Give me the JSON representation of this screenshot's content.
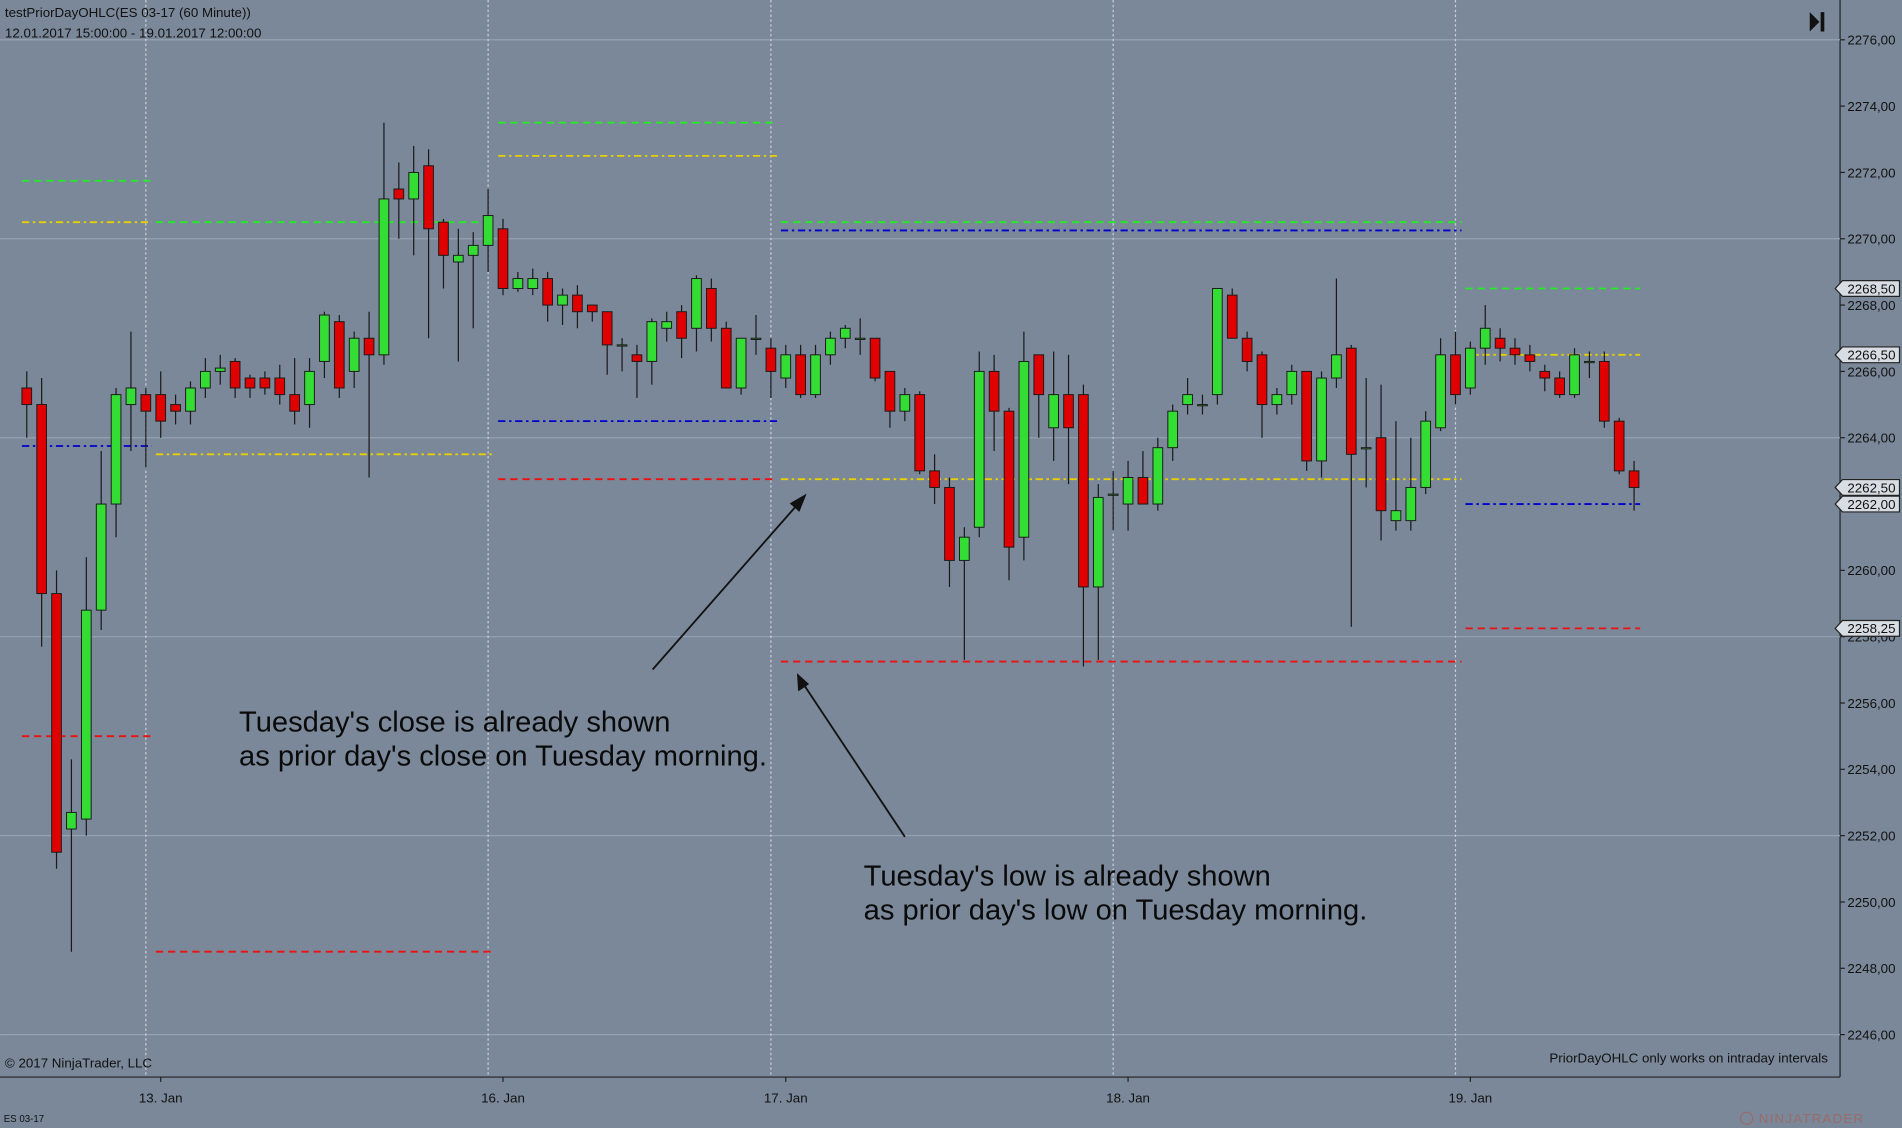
{
  "chart_data": {
    "type": "candlestick",
    "title": "testPriorDayOHLC(ES 03-17 (60 Minute))",
    "subtitle": "12.01.2017 15:00:00 - 19.01.2017 12:00:00",
    "copyright": "© 2017 NinjaTrader, LLC",
    "note": "PriorDayOHLC only works on intraday intervals",
    "instrument": "ES 03-17",
    "logo": "NINJATRADER",
    "up_color": "#33dd33",
    "down_color": "#e00000",
    "categories": [
      null,
      null,
      null,
      null,
      null,
      null,
      null,
      null,
      null,
      "13. Jan",
      null,
      null,
      null,
      null,
      null,
      null,
      null,
      null,
      null,
      null,
      null,
      null,
      null,
      null,
      null,
      null,
      null,
      null,
      null,
      null,
      null,
      null,
      "16. Jan",
      null,
      null,
      null,
      null,
      null,
      null,
      null,
      null,
      null,
      null,
      null,
      null,
      null,
      null,
      null,
      null,
      null,
      null,
      "17. Jan",
      null,
      null,
      null,
      null,
      null,
      null,
      null,
      null,
      null,
      null,
      null,
      null,
      null,
      null,
      null,
      null,
      null,
      null,
      null,
      null,
      null,
      null,
      "18. Jan",
      null,
      null,
      null,
      null,
      null,
      null,
      null,
      null,
      null,
      null,
      null,
      null,
      null,
      null,
      null,
      null,
      null,
      null,
      null,
      null,
      null,
      null,
      "19. Jan",
      null,
      null,
      null,
      null,
      null,
      null,
      null,
      null,
      null,
      null,
      null
    ],
    "open": [
      2265.5,
      2265.0,
      2259.3,
      2252.2,
      2252.5,
      2258.8,
      2262.0,
      2265.0,
      2265.3,
      2265.3,
      2265.0,
      2264.8,
      2265.5,
      2266.0,
      2266.3,
      2265.8,
      2265.8,
      2265.8,
      2265.3,
      2265.0,
      2266.3,
      2267.5,
      2266.0,
      2267.0,
      2266.5,
      2271.5,
      2271.2,
      2272.2,
      2270.5,
      2269.3,
      2269.5,
      2269.8,
      2270.3,
      2268.5,
      2268.5,
      2268.8,
      2268.0,
      2268.3,
      2268.0,
      2267.8,
      2266.8,
      2266.5,
      2266.3,
      2267.3,
      2267.8,
      2267.3,
      2268.5,
      2267.3,
      2265.5,
      2267.0,
      2266.7,
      2265.8,
      2266.5,
      2265.3,
      2266.5,
      2267.0,
      2267.0,
      2267.0,
      2266.0,
      2264.8,
      2265.3,
      2263.0,
      2262.5,
      2260.3,
      2261.3,
      2266.0,
      2264.8,
      2261.0,
      2266.5,
      2264.3,
      2265.3,
      2265.3,
      2259.5,
      2262.3,
      2262.0,
      2262.8,
      2262.0,
      2263.7,
      2265.0,
      2265.0,
      2265.3,
      2268.3,
      2267.0,
      2266.5,
      2265.0,
      2265.3,
      2266.0,
      2263.3,
      2265.8,
      2266.7,
      2263.7,
      2264.0,
      2261.5,
      2261.5,
      2262.5,
      2264.3,
      2266.5,
      2265.5,
      2266.7,
      2267.0,
      2266.7,
      2266.5,
      2266.0,
      2265.8,
      2265.3,
      2266.3,
      2266.3,
      2264.5,
      2263.0
    ],
    "high": [
      2266.0,
      2265.8,
      2260.0,
      2254.3,
      2260.4,
      2263.6,
      2265.5,
      2267.2,
      2265.5,
      2266.0,
      2265.3,
      2265.7,
      2266.4,
      2266.5,
      2266.4,
      2265.9,
      2266.0,
      2266.2,
      2266.4,
      2266.4,
      2267.8,
      2267.7,
      2267.2,
      2267.8,
      2273.5,
      2272.3,
      2272.8,
      2272.7,
      2270.6,
      2270.3,
      2270.2,
      2271.5,
      2270.6,
      2269.0,
      2269.1,
      2269.0,
      2268.5,
      2268.6,
      2268.0,
      2267.8,
      2267.0,
      2266.8,
      2267.6,
      2267.8,
      2268.0,
      2268.9,
      2268.8,
      2267.5,
      2267.0,
      2267.7,
      2267.0,
      2266.8,
      2266.8,
      2266.8,
      2267.2,
      2267.4,
      2267.6,
      2267.0,
      2266.0,
      2265.5,
      2265.4,
      2263.5,
      2262.8,
      2261.3,
      2266.6,
      2266.5,
      2264.9,
      2267.2,
      2266.5,
      2266.6,
      2266.5,
      2265.6,
      2262.6,
      2263.0,
      2263.3,
      2263.6,
      2264.0,
      2265.0,
      2265.8,
      2265.3,
      2268.5,
      2268.5,
      2267.2,
      2266.6,
      2265.5,
      2266.2,
      2266.0,
      2266.0,
      2268.8,
      2266.8,
      2265.8,
      2265.6,
      2264.5,
      2264.0,
      2264.8,
      2267.0,
      2267.2,
      2266.9,
      2268.0,
      2267.3,
      2267.0,
      2266.8,
      2266.2,
      2266.0,
      2266.7,
      2266.6,
      2266.6,
      2264.6,
      2263.3
    ],
    "low": [
      2264.0,
      2257.7,
      2251.0,
      2248.5,
      2252.0,
      2258.2,
      2261.0,
      2263.6,
      2263.1,
      2264.0,
      2264.4,
      2264.4,
      2265.2,
      2265.6,
      2265.2,
      2265.2,
      2265.3,
      2265.0,
      2264.4,
      2264.3,
      2265.8,
      2265.2,
      2265.5,
      2262.8,
      2266.2,
      2270.0,
      2269.5,
      2267.0,
      2268.5,
      2266.3,
      2267.3,
      2269.0,
      2268.3,
      2268.4,
      2268.3,
      2267.5,
      2267.4,
      2267.3,
      2267.5,
      2265.9,
      2266.0,
      2265.2,
      2265.6,
      2266.9,
      2266.4,
      2266.6,
      2266.9,
      2265.5,
      2265.3,
      2266.5,
      2265.2,
      2265.5,
      2265.2,
      2265.2,
      2266.2,
      2266.7,
      2266.5,
      2265.7,
      2264.3,
      2264.5,
      2262.9,
      2262.0,
      2259.5,
      2257.3,
      2261.0,
      2263.6,
      2259.7,
      2260.3,
      2264.0,
      2263.3,
      2262.6,
      2257.1,
      2257.3,
      2261.2,
      2261.2,
      2262.0,
      2261.8,
      2263.3,
      2264.7,
      2264.7,
      2265.0,
      2267.0,
      2266.0,
      2264.0,
      2264.7,
      2265.0,
      2263.0,
      2262.8,
      2265.5,
      2258.3,
      2262.5,
      2260.9,
      2261.2,
      2261.2,
      2262.3,
      2264.2,
      2265.0,
      2265.3,
      2266.2,
      2266.3,
      2266.2,
      2266.0,
      2265.4,
      2265.2,
      2265.2,
      2265.8,
      2264.3,
      2262.9,
      2261.8
    ],
    "close": [
      2265.0,
      2259.3,
      2251.5,
      2252.7,
      2258.8,
      2262.0,
      2265.3,
      2265.5,
      2264.8,
      2264.5,
      2264.8,
      2265.5,
      2266.0,
      2266.1,
      2265.5,
      2265.5,
      2265.5,
      2265.3,
      2264.8,
      2266.0,
      2267.7,
      2265.5,
      2267.0,
      2266.5,
      2271.2,
      2271.2,
      2272.0,
      2270.3,
      2269.5,
      2269.5,
      2269.8,
      2270.7,
      2268.5,
      2268.8,
      2268.8,
      2268.0,
      2268.3,
      2267.8,
      2267.8,
      2266.8,
      2266.8,
      2266.3,
      2267.5,
      2267.5,
      2267.0,
      2268.8,
      2267.3,
      2265.5,
      2267.0,
      2267.0,
      2266.0,
      2266.5,
      2265.3,
      2266.5,
      2267.0,
      2267.3,
      2267.0,
      2265.8,
      2264.8,
      2265.3,
      2263.0,
      2262.5,
      2260.3,
      2261.0,
      2266.0,
      2264.8,
      2260.7,
      2266.3,
      2265.3,
      2265.3,
      2264.3,
      2259.5,
      2262.2,
      2262.3,
      2262.8,
      2262.0,
      2263.7,
      2264.8,
      2265.3,
      2265.0,
      2268.5,
      2267.0,
      2266.3,
      2265.0,
      2265.3,
      2266.0,
      2263.3,
      2265.8,
      2266.5,
      2263.5,
      2263.7,
      2261.8,
      2261.8,
      2262.5,
      2264.5,
      2266.5,
      2265.3,
      2266.7,
      2267.3,
      2266.7,
      2266.5,
      2266.3,
      2265.8,
      2265.3,
      2266.5,
      2266.3,
      2264.5,
      2263.0,
      2262.5
    ],
    "last_label": "2262,50",
    "levels": [
      {
        "color": "#22ee22",
        "dash": "dashed",
        "from": 0,
        "to": 8,
        "value": 2271.75
      },
      {
        "color": "#e8d000",
        "dash": "dashdot",
        "from": 0,
        "to": 8,
        "value": 2270.5
      },
      {
        "color": "#0000cc",
        "dash": "dashdot",
        "from": 0,
        "to": 8,
        "value": 2263.75
      },
      {
        "color": "#ee1111",
        "dash": "dashed",
        "from": 0,
        "to": 8,
        "value": 2255.0
      },
      {
        "color": "#22ee22",
        "dash": "dashed",
        "from": 9,
        "to": 31,
        "value": 2270.5
      },
      {
        "color": "#e8d000",
        "dash": "dashdot",
        "from": 9,
        "to": 31,
        "value": 2263.5
      },
      {
        "color": "#ee1111",
        "dash": "dashed",
        "from": 9,
        "to": 31,
        "value": 2248.5
      },
      {
        "color": "#22ee22",
        "dash": "dashed",
        "from": 32,
        "to": 50,
        "value": 2273.5
      },
      {
        "color": "#e8d000",
        "dash": "dashdot",
        "from": 32,
        "to": 50,
        "value": 2272.5
      },
      {
        "color": "#0000cc",
        "dash": "dashdot",
        "from": 32,
        "to": 50,
        "value": 2264.5
      },
      {
        "color": "#ee1111",
        "dash": "dashed",
        "from": 32,
        "to": 50,
        "value": 2262.75
      },
      {
        "color": "#22ee22",
        "dash": "dashed",
        "from": 51,
        "to": 96,
        "value": 2270.5
      },
      {
        "color": "#0000cc",
        "dash": "dashdot",
        "from": 51,
        "to": 96,
        "value": 2270.25
      },
      {
        "color": "#e8d000",
        "dash": "dashdot",
        "from": 51,
        "to": 96,
        "value": 2262.75
      },
      {
        "color": "#ee1111",
        "dash": "dashed",
        "from": 51,
        "to": 96,
        "value": 2257.25
      },
      {
        "color": "#22ee22",
        "dash": "dashed",
        "from": 97,
        "to": 108,
        "value": 2268.5,
        "label": "2268,50"
      },
      {
        "color": "#e8d000",
        "dash": "dashdot",
        "from": 97,
        "to": 108,
        "value": 2266.5,
        "label": "2266,50"
      },
      {
        "color": "#0000cc",
        "dash": "dashdot",
        "from": 97,
        "to": 108,
        "value": 2262.0,
        "label": "2262,00"
      },
      {
        "color": "#ee1111",
        "dash": "dashed",
        "from": 97,
        "to": 108,
        "value": 2258.25,
        "label": "2258,25"
      }
    ],
    "ylim": [
      2244.72,
      2277.2
    ],
    "yticks": [
      {
        "value": 2246,
        "label": "2246,00"
      },
      {
        "value": 2248,
        "label": "2248,00"
      },
      {
        "value": 2250,
        "label": "2250,00"
      },
      {
        "value": 2252,
        "label": "2252,00"
      },
      {
        "value": 2254,
        "label": "2254,00"
      },
      {
        "value": 2256,
        "label": "2256,00"
      },
      {
        "value": 2258,
        "label": "2258,00"
      },
      {
        "value": 2260,
        "label": "2260,00"
      },
      {
        "value": 2262,
        "label": "2262,00"
      },
      {
        "value": 2264,
        "label": "2264,00"
      },
      {
        "value": 2266,
        "label": "2266,00"
      },
      {
        "value": 2268,
        "label": "2268,00"
      },
      {
        "value": 2270,
        "label": "2270,00"
      },
      {
        "value": 2272,
        "label": "2272,00"
      },
      {
        "value": 2274,
        "label": "2274,00"
      },
      {
        "value": 2276,
        "label": "2276,00"
      }
    ],
    "annotations": [
      {
        "lines": [
          "Tuesday's close is already shown",
          "as prior day's close on Tuesday morning."
        ]
      },
      {
        "lines": [
          "Tuesday's low is already shown",
          "as prior day's low on Tuesday morning."
        ]
      }
    ]
  }
}
